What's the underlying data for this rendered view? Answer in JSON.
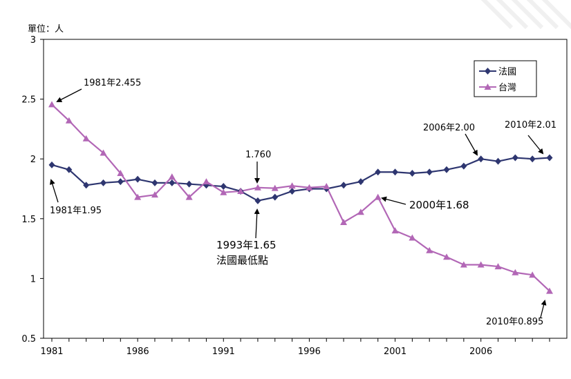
{
  "chart_data": {
    "type": "line",
    "unit_label": "單位：人",
    "x": [
      1981,
      1982,
      1983,
      1984,
      1985,
      1986,
      1987,
      1988,
      1989,
      1990,
      1991,
      1992,
      1993,
      1994,
      1995,
      1996,
      1997,
      1998,
      1999,
      2000,
      2001,
      2002,
      2003,
      2004,
      2005,
      2006,
      2007,
      2008,
      2009,
      2010
    ],
    "x_tick_labels": [
      "1981",
      "1986",
      "1991",
      "1996",
      "2001",
      "2006"
    ],
    "y_tick_labels": [
      "0.5",
      "1",
      "1.5",
      "2",
      "2.5",
      "3"
    ],
    "xlim": [
      1981,
      2010
    ],
    "ylim": [
      0.5,
      3
    ],
    "series": [
      {
        "name": "法國",
        "color": "#2e3670",
        "marker": "diamond",
        "values": [
          1.95,
          1.91,
          1.78,
          1.8,
          1.81,
          1.83,
          1.8,
          1.8,
          1.79,
          1.78,
          1.77,
          1.73,
          1.65,
          1.68,
          1.73,
          1.75,
          1.75,
          1.78,
          1.81,
          1.89,
          1.89,
          1.88,
          1.89,
          1.91,
          1.94,
          2.0,
          1.98,
          2.01,
          2.0,
          2.01
        ]
      },
      {
        "name": "台灣",
        "color": "#b267b6",
        "marker": "triangle",
        "values": [
          2.455,
          2.32,
          2.17,
          2.05,
          1.88,
          1.68,
          1.7,
          1.85,
          1.68,
          1.81,
          1.72,
          1.73,
          1.76,
          1.755,
          1.775,
          1.76,
          1.77,
          1.47,
          1.555,
          1.68,
          1.4,
          1.34,
          1.235,
          1.18,
          1.115,
          1.115,
          1.1,
          1.05,
          1.03,
          0.895
        ]
      }
    ],
    "legend": "top-right",
    "grid": false,
    "annotations": [
      {
        "id": "ann-1981-tw",
        "text": "1981年2.455"
      },
      {
        "id": "ann-1981-fr",
        "text": "1981年1.95"
      },
      {
        "id": "ann-1993-tw",
        "text": "1.760"
      },
      {
        "id": "ann-1993-fr-1",
        "text": "1993年1.65"
      },
      {
        "id": "ann-1993-fr-2",
        "text": "法國最低點"
      },
      {
        "id": "ann-2000-tw",
        "text": "2000年1.68"
      },
      {
        "id": "ann-2006-fr",
        "text": "2006年2.00"
      },
      {
        "id": "ann-2010-fr",
        "text": "2010年2.01"
      },
      {
        "id": "ann-2010-tw",
        "text": "2010年0.895"
      }
    ]
  }
}
